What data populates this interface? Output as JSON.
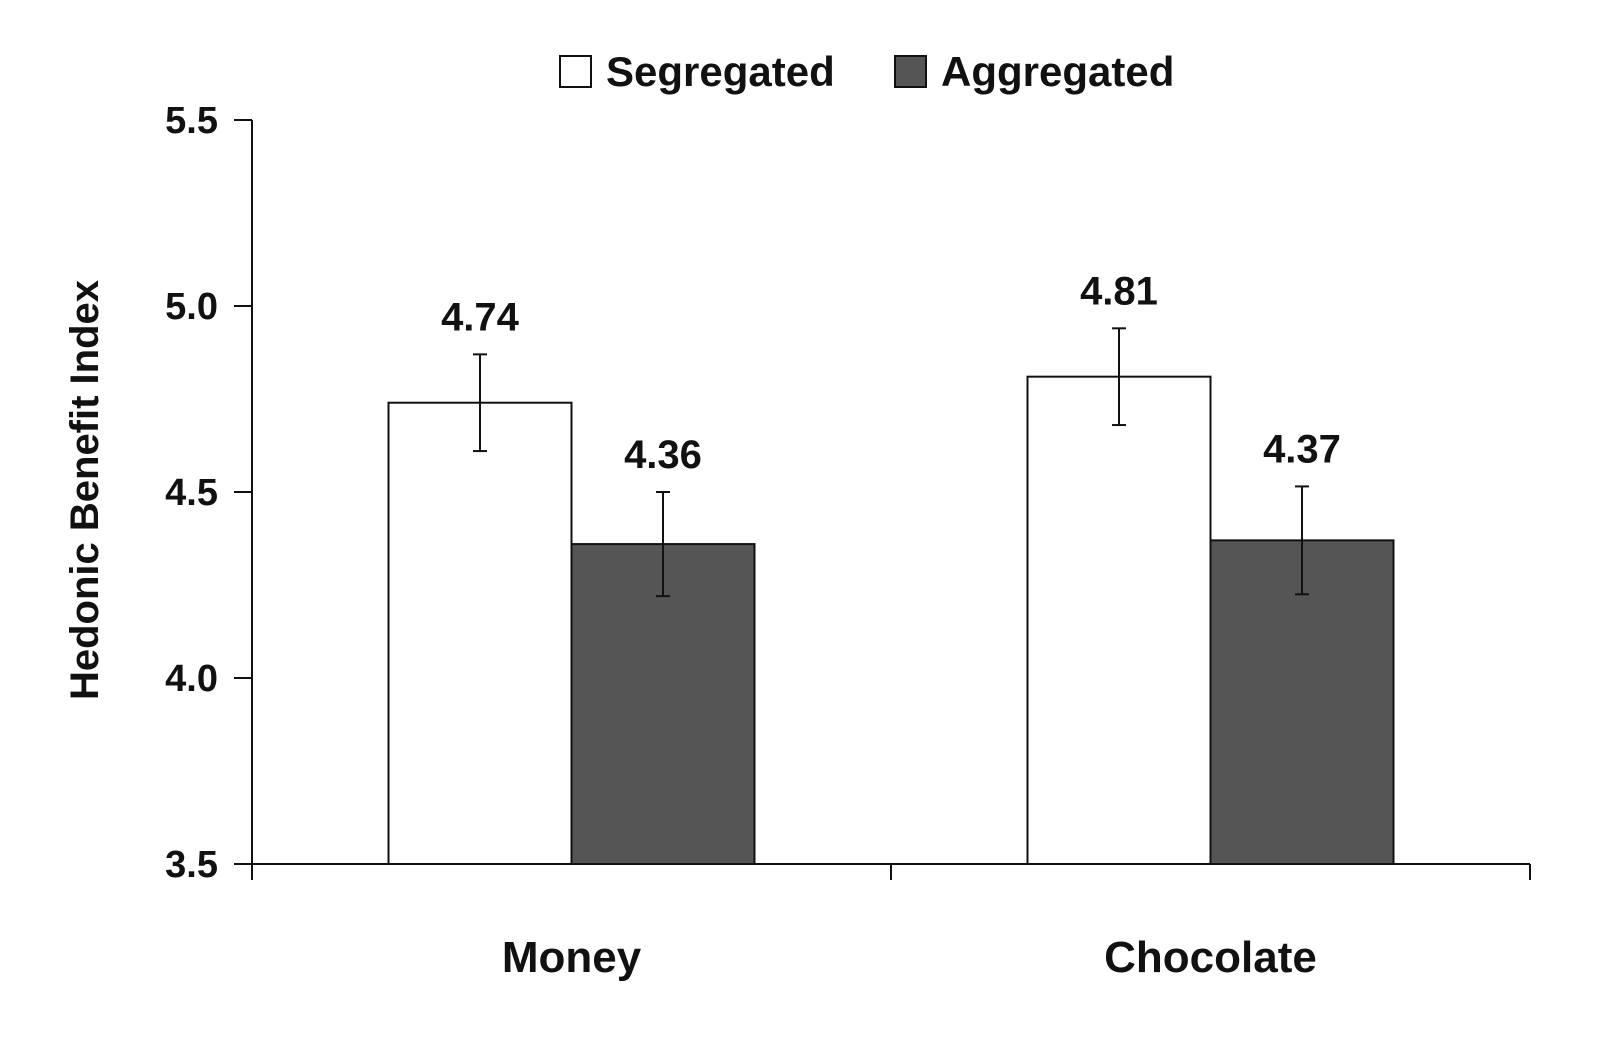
{
  "chart_data": {
    "type": "bar",
    "categories": [
      "Money",
      "Chocolate"
    ],
    "series": [
      {
        "name": "Segregated",
        "values": [
          4.74,
          4.81
        ],
        "errors": [
          0.13,
          0.13
        ],
        "labels": [
          "4.74",
          "4.81"
        ],
        "color": "#ffffff"
      },
      {
        "name": "Aggregated",
        "values": [
          4.36,
          4.37
        ],
        "errors": [
          0.14,
          0.145
        ],
        "labels": [
          "4.36",
          "4.37"
        ],
        "color": "#555555"
      }
    ],
    "ylabel": "Hedonic Benefit Index",
    "xlabel": "",
    "ylim": [
      3.5,
      5.5
    ],
    "yticks": [
      3.5,
      4.0,
      4.5,
      5.0,
      5.5
    ],
    "ytick_labels": [
      "3.5",
      "4.0",
      "4.5",
      "5.0",
      "5.5"
    ],
    "grid": false,
    "legend_position": "top-center",
    "error_bars": true
  }
}
